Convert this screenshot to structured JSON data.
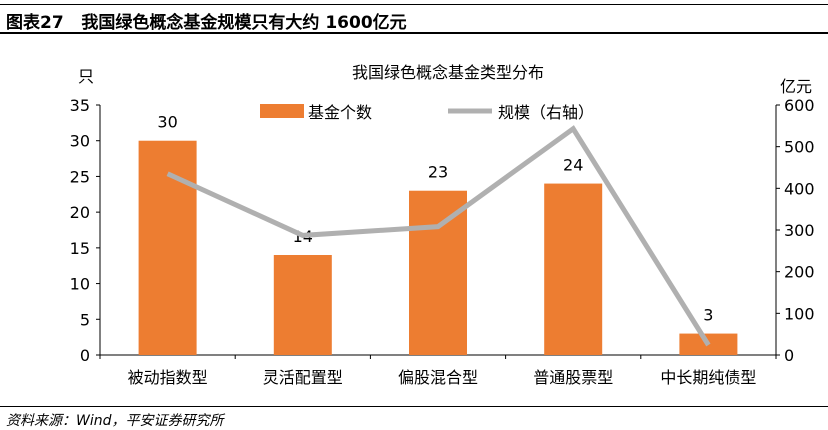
{
  "header": {
    "title": "图表27   我国绿色概念基金规模只有大约 1600亿元"
  },
  "footer": {
    "source": "资料来源：Wind，平安证券研究所"
  },
  "chart_data": {
    "type": "bar+line",
    "title": "我国绿色概念基金类型分布",
    "ylabel_left": "只",
    "ylabel_right": "亿元",
    "categories": [
      "被动指数型",
      "灵活配置型",
      "偏股混合型",
      "普通股票型",
      "中长期纯债型"
    ],
    "ylim_left": [
      0,
      35
    ],
    "yticks_left": [
      0,
      5,
      10,
      15,
      20,
      25,
      30,
      35
    ],
    "ylim_right": [
      0,
      600
    ],
    "yticks_right": [
      0,
      100,
      200,
      300,
      400,
      500,
      600
    ],
    "legend_position": "top",
    "grid": false,
    "series": [
      {
        "name": "基金个数",
        "type": "bar",
        "axis": "left",
        "color": "#ED7D31",
        "values": [
          30,
          14,
          23,
          24,
          3
        ],
        "data_labels": [
          "30",
          "14",
          "23",
          "24",
          "3"
        ]
      },
      {
        "name": "规模（右轴）",
        "type": "line",
        "axis": "right",
        "color": "#B0B0B0",
        "values": [
          435,
          287,
          308,
          543,
          24
        ]
      }
    ]
  }
}
